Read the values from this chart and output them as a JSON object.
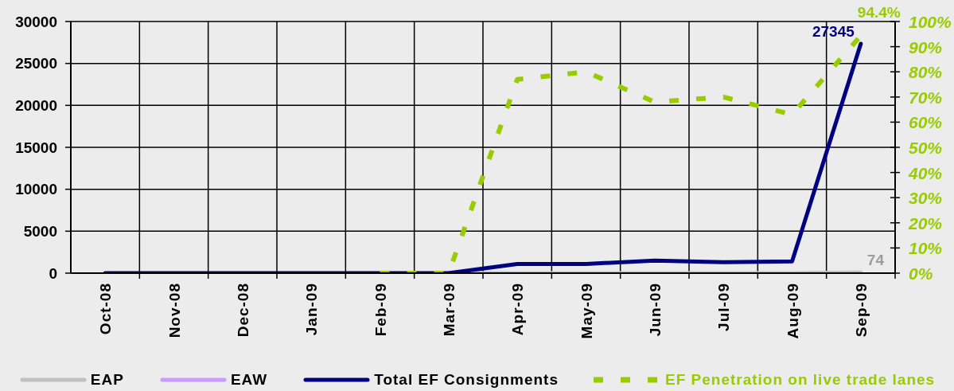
{
  "chart_data": {
    "type": "line",
    "categories": [
      "Oct-08",
      "Nov-08",
      "Dec-08",
      "Jan-09",
      "Feb-09",
      "Mar-09",
      "Apr-09",
      "May-09",
      "Jun-09",
      "Jul-09",
      "Aug-09",
      "Sep-09"
    ],
    "series": [
      {
        "name": "EAP",
        "color": "#c0c0c0",
        "values": [
          null,
          null,
          null,
          null,
          null,
          0,
          0,
          0,
          0,
          0,
          0,
          74
        ],
        "value_labels": [
          null,
          null,
          null,
          null,
          null,
          null,
          null,
          null,
          null,
          null,
          null,
          "74"
        ]
      },
      {
        "name": "EAW",
        "color": "#cc99ff",
        "values": [
          null,
          null,
          null,
          null,
          null,
          null,
          null,
          null,
          null,
          null,
          null,
          null
        ]
      },
      {
        "name": "Total EF Consignments",
        "color": "#000080",
        "values": [
          0,
          0,
          0,
          0,
          0,
          0,
          1100,
          1100,
          1500,
          1300,
          1400,
          27345
        ],
        "value_labels": [
          null,
          null,
          null,
          null,
          null,
          null,
          null,
          null,
          null,
          null,
          null,
          "27345"
        ]
      },
      {
        "name": "EF Penetration on live trade lanes",
        "color": "#99cc00",
        "axis": "y2",
        "line_style": "dashed",
        "values": [
          null,
          null,
          null,
          null,
          0,
          0,
          77,
          80,
          68,
          70,
          63,
          94.4
        ],
        "value_labels": [
          null,
          null,
          null,
          null,
          null,
          null,
          null,
          null,
          null,
          null,
          null,
          "94.4%"
        ]
      }
    ],
    "ylim": [
      0,
      30000
    ],
    "yticks": [
      0,
      5000,
      10000,
      15000,
      20000,
      25000,
      30000
    ],
    "y2lim": [
      0,
      100
    ],
    "y2ticks": [
      {
        "value": 0,
        "label": "0%"
      },
      {
        "value": 10,
        "label": "10%"
      },
      {
        "value": 20,
        "label": "20%"
      },
      {
        "value": 30,
        "label": "30%"
      },
      {
        "value": 40,
        "label": "40%"
      },
      {
        "value": 50,
        "label": "50%"
      },
      {
        "value": 60,
        "label": "60%"
      },
      {
        "value": 70,
        "label": "70%"
      },
      {
        "value": 80,
        "label": "80%"
      },
      {
        "value": 90,
        "label": "90%"
      },
      {
        "value": 100,
        "label": "100%"
      }
    ],
    "grid": true,
    "legend": "bottom"
  }
}
